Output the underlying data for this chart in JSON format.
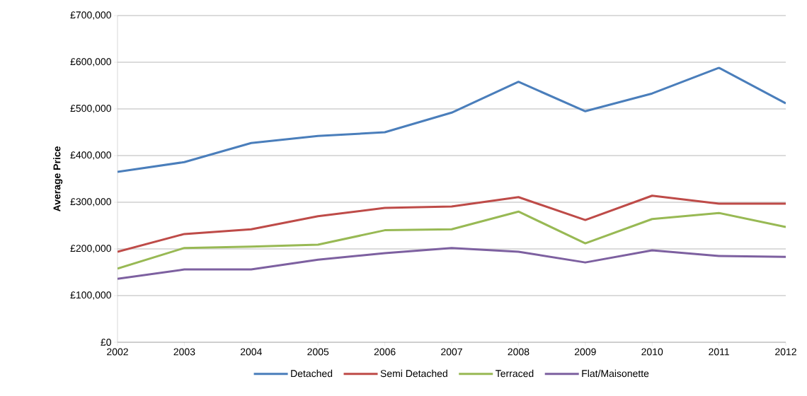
{
  "chart_data": {
    "type": "line",
    "ylabel": "Average Price",
    "x": [
      2002,
      2003,
      2004,
      2005,
      2006,
      2007,
      2008,
      2009,
      2010,
      2011,
      2012
    ],
    "xlim": [
      2002,
      2012
    ],
    "xticks": [
      2002,
      2003,
      2004,
      2005,
      2006,
      2007,
      2008,
      2009,
      2010,
      2011,
      2012
    ],
    "ylim": [
      0,
      700000
    ],
    "yticks": [
      {
        "value": 0,
        "label": "£0"
      },
      {
        "value": 100000,
        "label": "£100,000"
      },
      {
        "value": 200000,
        "label": "£200,000"
      },
      {
        "value": 300000,
        "label": "£300,000"
      },
      {
        "value": 400000,
        "label": "£400,000"
      },
      {
        "value": 500000,
        "label": "£500,000"
      },
      {
        "value": 600000,
        "label": "£600,000"
      },
      {
        "value": 700000,
        "label": "£700,000"
      }
    ],
    "grid": "y",
    "legend": "bottom",
    "marker": "none",
    "line_style": "solid",
    "series": [
      {
        "name": "Detached",
        "color": "#4a7ebb",
        "values": [
          365000,
          386000,
          427000,
          442000,
          450000,
          492000,
          558000,
          495000,
          533000,
          588000,
          512000
        ]
      },
      {
        "name": "Semi Detached",
        "color": "#be4b48",
        "values": [
          194000,
          232000,
          242000,
          270000,
          288000,
          291000,
          311000,
          262000,
          314000,
          297000,
          297000
        ]
      },
      {
        "name": "Terraced",
        "color": "#98b954",
        "values": [
          158000,
          202000,
          205000,
          209000,
          240000,
          242000,
          280000,
          212000,
          264000,
          277000,
          247000
        ]
      },
      {
        "name": "Flat/Maisonette",
        "color": "#7d60a0",
        "values": [
          136000,
          156000,
          156000,
          177000,
          191000,
          202000,
          194000,
          171000,
          197000,
          185000,
          183000
        ]
      }
    ]
  }
}
